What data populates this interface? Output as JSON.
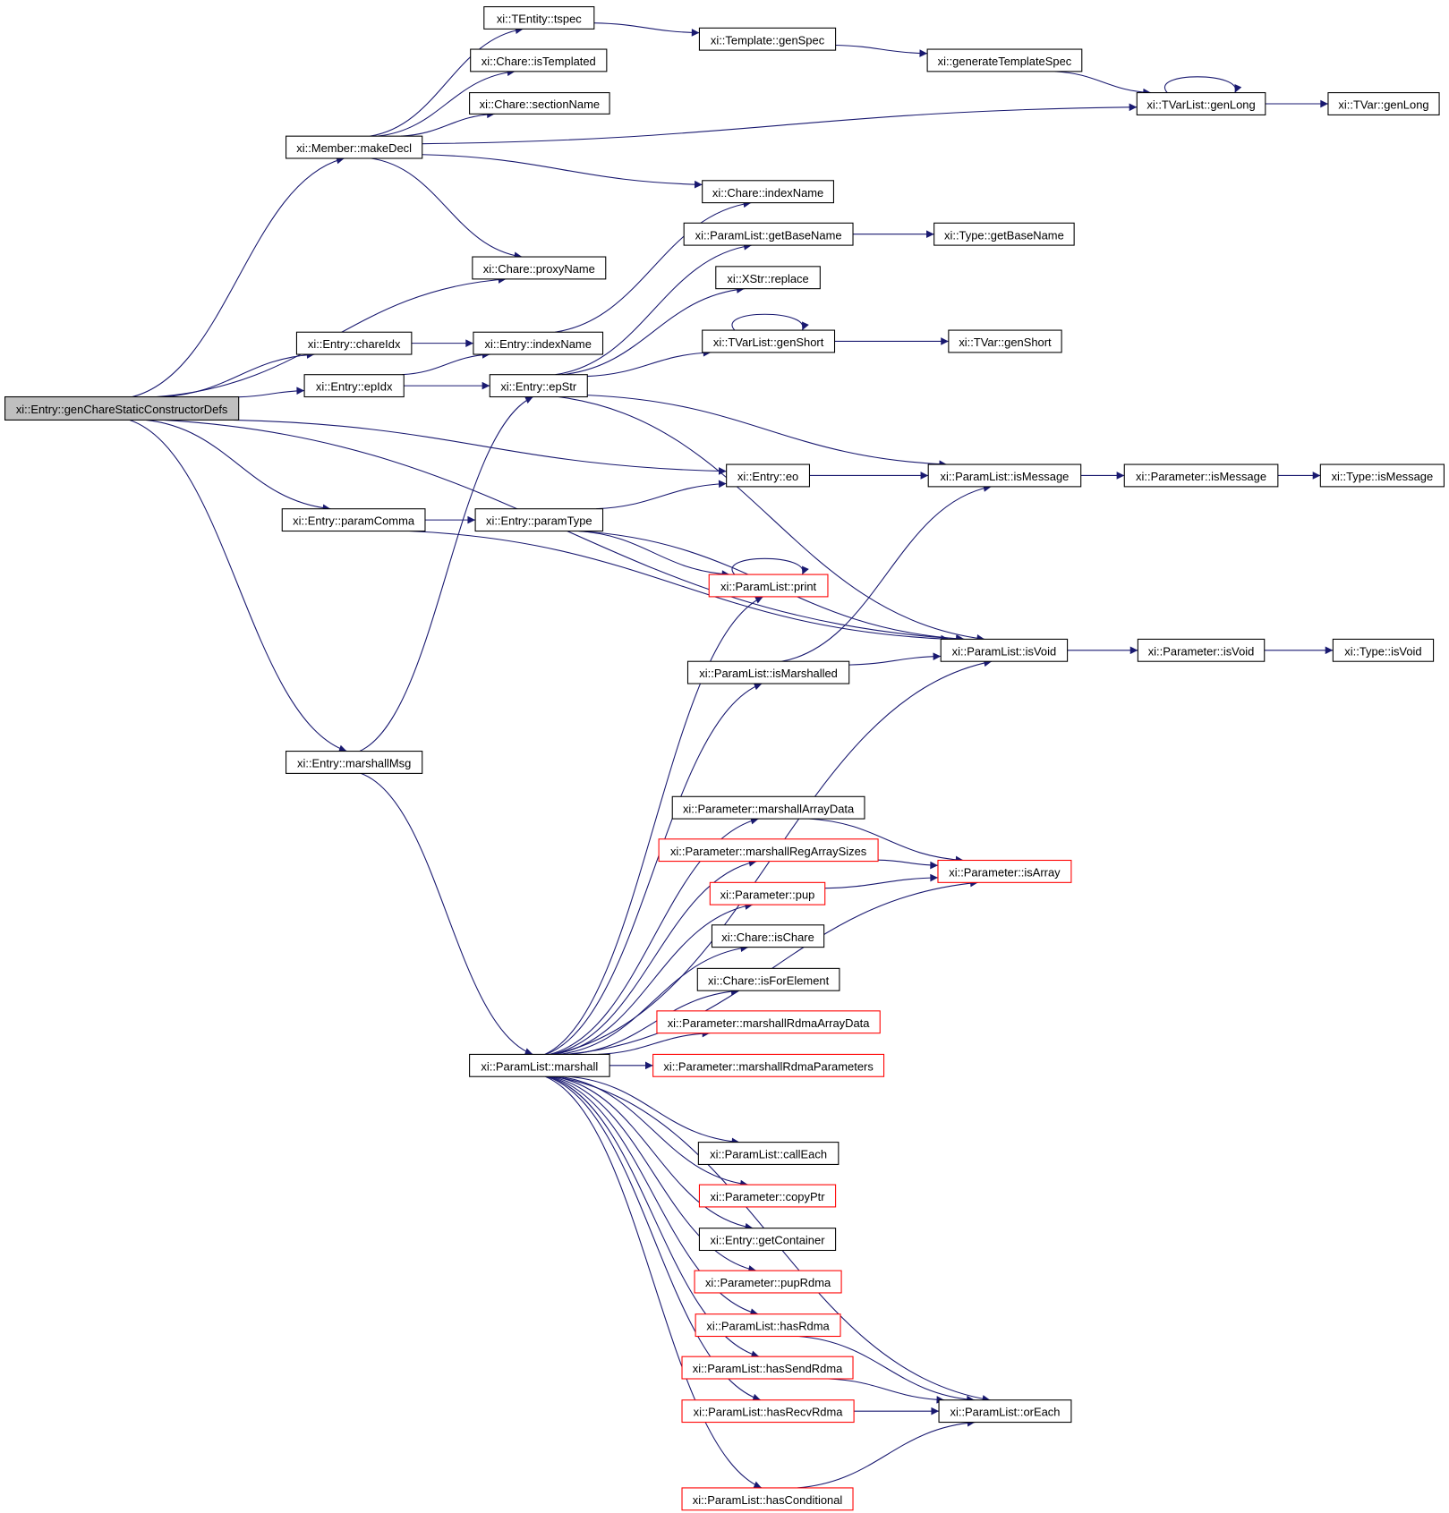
{
  "graph": {
    "edge_color": "#191970",
    "root_fill": "#bfbfbf",
    "highlight_border": "#ff0000",
    "nodes": [
      {
        "id": "root",
        "label": "xi::Entry::genChareStaticConstructorDefs",
        "root": true
      },
      {
        "id": "tspec",
        "label": "xi::TEntity::tspec"
      },
      {
        "id": "isTemplated",
        "label": "xi::Chare::isTemplated"
      },
      {
        "id": "sectionName",
        "label": "xi::Chare::sectionName"
      },
      {
        "id": "makeDecl",
        "label": "xi::Member::makeDecl"
      },
      {
        "id": "genSpec",
        "label": "xi::Template::genSpec"
      },
      {
        "id": "genTplSpec",
        "label": "xi::generateTemplateSpec"
      },
      {
        "id": "tvlGenLong",
        "label": "xi::TVarList::genLong"
      },
      {
        "id": "tvGenLong",
        "label": "xi::TVar::genLong"
      },
      {
        "id": "chareIndexName",
        "label": "xi::Chare::indexName"
      },
      {
        "id": "plGetBaseName",
        "label": "xi::ParamList::getBaseName"
      },
      {
        "id": "typeGetBaseName",
        "label": "xi::Type::getBaseName"
      },
      {
        "id": "proxyName",
        "label": "xi::Chare::proxyName"
      },
      {
        "id": "replace",
        "label": "xi::XStr::replace"
      },
      {
        "id": "chareIdx",
        "label": "xi::Entry::chareIdx"
      },
      {
        "id": "entryIndexName",
        "label": "xi::Entry::indexName"
      },
      {
        "id": "tvlGenShort",
        "label": "xi::TVarList::genShort"
      },
      {
        "id": "tvGenShort",
        "label": "xi::TVar::genShort"
      },
      {
        "id": "epIdx",
        "label": "xi::Entry::epIdx"
      },
      {
        "id": "epStr",
        "label": "xi::Entry::epStr"
      },
      {
        "id": "eo",
        "label": "xi::Entry::eo"
      },
      {
        "id": "plIsMessage",
        "label": "xi::ParamList::isMessage"
      },
      {
        "id": "pIsMessage",
        "label": "xi::Parameter::isMessage"
      },
      {
        "id": "tIsMessage",
        "label": "xi::Type::isMessage"
      },
      {
        "id": "paramComma",
        "label": "xi::Entry::paramComma"
      },
      {
        "id": "paramType",
        "label": "xi::Entry::paramType"
      },
      {
        "id": "print",
        "label": "xi::ParamList::print",
        "red": true
      },
      {
        "id": "plIsVoid",
        "label": "xi::ParamList::isVoid"
      },
      {
        "id": "pIsVoid",
        "label": "xi::Parameter::isVoid"
      },
      {
        "id": "tIsVoid",
        "label": "xi::Type::isVoid"
      },
      {
        "id": "isMarshalled",
        "label": "xi::ParamList::isMarshalled"
      },
      {
        "id": "marshallMsg",
        "label": "xi::Entry::marshallMsg"
      },
      {
        "id": "mArrayData",
        "label": "xi::Parameter::marshallArrayData"
      },
      {
        "id": "mRegArraySizes",
        "label": "xi::Parameter::marshallRegArraySizes",
        "red": true
      },
      {
        "id": "isArray",
        "label": "xi::Parameter::isArray",
        "red": true
      },
      {
        "id": "pup",
        "label": "xi::Parameter::pup",
        "red": true
      },
      {
        "id": "isChare",
        "label": "xi::Chare::isChare"
      },
      {
        "id": "isForElement",
        "label": "xi::Chare::isForElement"
      },
      {
        "id": "mRdmaArrayData",
        "label": "xi::Parameter::marshallRdmaArrayData",
        "red": true
      },
      {
        "id": "mRdmaParams",
        "label": "xi::Parameter::marshallRdmaParameters",
        "red": true
      },
      {
        "id": "marshall",
        "label": "xi::ParamList::marshall"
      },
      {
        "id": "callEach",
        "label": "xi::ParamList::callEach"
      },
      {
        "id": "copyPtr",
        "label": "xi::Parameter::copyPtr",
        "red": true
      },
      {
        "id": "getContainer",
        "label": "xi::Entry::getContainer"
      },
      {
        "id": "pupRdma",
        "label": "xi::Parameter::pupRdma",
        "red": true
      },
      {
        "id": "hasRdma",
        "label": "xi::ParamList::hasRdma",
        "red": true
      },
      {
        "id": "hasSendRdma",
        "label": "xi::ParamList::hasSendRdma",
        "red": true
      },
      {
        "id": "hasRecvRdma",
        "label": "xi::ParamList::hasRecvRdma",
        "red": true
      },
      {
        "id": "orEach",
        "label": "xi::ParamList::orEach"
      },
      {
        "id": "hasConditional",
        "label": "xi::ParamList::hasConditional",
        "red": true
      }
    ],
    "edges": [
      [
        "root",
        "makeDecl"
      ],
      [
        "root",
        "proxyName"
      ],
      [
        "root",
        "chareIdx"
      ],
      [
        "root",
        "epIdx"
      ],
      [
        "root",
        "eo"
      ],
      [
        "root",
        "paramComma"
      ],
      [
        "root",
        "plIsVoid"
      ],
      [
        "root",
        "marshallMsg"
      ],
      [
        "makeDecl",
        "tspec"
      ],
      [
        "makeDecl",
        "isTemplated"
      ],
      [
        "makeDecl",
        "sectionName"
      ],
      [
        "makeDecl",
        "tvlGenLong"
      ],
      [
        "makeDecl",
        "chareIndexName"
      ],
      [
        "makeDecl",
        "proxyName"
      ],
      [
        "tspec",
        "genSpec"
      ],
      [
        "genSpec",
        "genTplSpec"
      ],
      [
        "genTplSpec",
        "tvlGenLong"
      ],
      [
        "tvlGenLong",
        "tvlGenLong"
      ],
      [
        "tvlGenLong",
        "tvGenLong"
      ],
      [
        "chareIdx",
        "entryIndexName"
      ],
      [
        "epIdx",
        "entryIndexName"
      ],
      [
        "epIdx",
        "epStr"
      ],
      [
        "entryIndexName",
        "chareIndexName"
      ],
      [
        "epStr",
        "plGetBaseName"
      ],
      [
        "epStr",
        "replace"
      ],
      [
        "epStr",
        "tvlGenShort"
      ],
      [
        "epStr",
        "plIsMessage"
      ],
      [
        "epStr",
        "plIsVoid"
      ],
      [
        "plGetBaseName",
        "typeGetBaseName"
      ],
      [
        "tvlGenShort",
        "tvlGenShort"
      ],
      [
        "tvlGenShort",
        "tvGenShort"
      ],
      [
        "eo",
        "plIsMessage"
      ],
      [
        "plIsMessage",
        "pIsMessage"
      ],
      [
        "pIsMessage",
        "tIsMessage"
      ],
      [
        "paramComma",
        "paramType"
      ],
      [
        "paramComma",
        "plIsVoid"
      ],
      [
        "paramType",
        "eo"
      ],
      [
        "paramType",
        "print"
      ],
      [
        "paramType",
        "plIsVoid"
      ],
      [
        "print",
        "print"
      ],
      [
        "plIsVoid",
        "pIsVoid"
      ],
      [
        "pIsVoid",
        "tIsVoid"
      ],
      [
        "isMarshalled",
        "plIsMessage"
      ],
      [
        "isMarshalled",
        "plIsVoid"
      ],
      [
        "marshallMsg",
        "epStr"
      ],
      [
        "marshallMsg",
        "marshall"
      ],
      [
        "marshall",
        "print"
      ],
      [
        "marshall",
        "isMarshalled"
      ],
      [
        "marshall",
        "plIsVoid"
      ],
      [
        "marshall",
        "mArrayData"
      ],
      [
        "marshall",
        "mRegArraySizes"
      ],
      [
        "marshall",
        "pup"
      ],
      [
        "marshall",
        "isChare"
      ],
      [
        "marshall",
        "isForElement"
      ],
      [
        "marshall",
        "mRdmaArrayData"
      ],
      [
        "marshall",
        "mRdmaParams"
      ],
      [
        "marshall",
        "isArray"
      ],
      [
        "marshall",
        "callEach"
      ],
      [
        "marshall",
        "copyPtr"
      ],
      [
        "marshall",
        "getContainer"
      ],
      [
        "marshall",
        "pupRdma"
      ],
      [
        "marshall",
        "hasRdma"
      ],
      [
        "marshall",
        "hasSendRdma"
      ],
      [
        "marshall",
        "hasRecvRdma"
      ],
      [
        "marshall",
        "orEach"
      ],
      [
        "marshall",
        "hasConditional"
      ],
      [
        "mArrayData",
        "isArray"
      ],
      [
        "mRegArraySizes",
        "isArray"
      ],
      [
        "pup",
        "isArray"
      ],
      [
        "hasRdma",
        "orEach"
      ],
      [
        "hasSendRdma",
        "orEach"
      ],
      [
        "hasRecvRdma",
        "orEach"
      ],
      [
        "hasConditional",
        "orEach"
      ]
    ]
  }
}
